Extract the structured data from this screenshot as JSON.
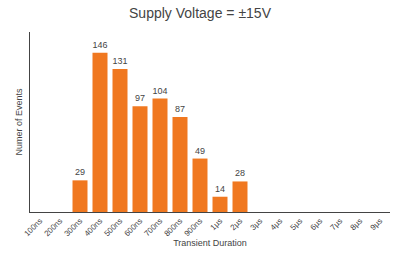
{
  "chart_data": {
    "type": "bar",
    "title": "Supply Voltage = ±15V",
    "xlabel": "Transient Duration",
    "ylabel": "Numer of Events",
    "categories": [
      "100ns",
      "200ns",
      "300ns",
      "400ns",
      "500ns",
      "600ns",
      "700ns",
      "800ns",
      "900ns",
      "1μs",
      "2μs",
      "3μs",
      "4μs",
      "5μs",
      "6μs",
      "7μs",
      "8μs",
      "9μs"
    ],
    "values": [
      0,
      0,
      29,
      146,
      131,
      97,
      104,
      87,
      49,
      14,
      28,
      0,
      0,
      0,
      0,
      0,
      0,
      0
    ],
    "value_labels": [
      null,
      null,
      "29",
      "146",
      "131",
      "97",
      "104",
      "87",
      "49",
      "14",
      "28",
      null,
      null,
      null,
      null,
      null,
      null,
      null
    ],
    "color": "#F07820",
    "ylim": [
      0,
      165
    ],
    "grid": false,
    "data_labels": true,
    "tick_labels": "x"
  }
}
